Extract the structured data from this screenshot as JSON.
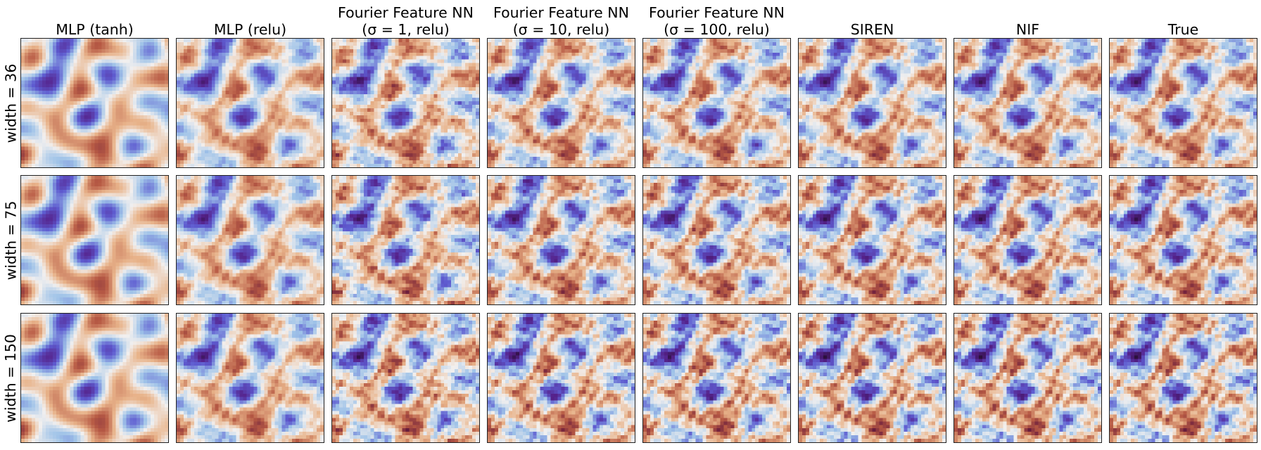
{
  "figure": {
    "columns": [
      {
        "title": [
          "MLP (tanh)"
        ],
        "kind": "smooth",
        "noise": 0
      },
      {
        "title": [
          "MLP (relu)"
        ],
        "kind": "relu",
        "noise": 0
      },
      {
        "title": [
          "Fourier Feature NN",
          "(σ = 1, relu)"
        ],
        "kind": "ff1",
        "noise": 0.9
      },
      {
        "title": [
          "Fourier Feature NN",
          "(σ = 10, relu)"
        ],
        "kind": "ff10",
        "noise": 0.6
      },
      {
        "title": [
          "Fourier Feature NN",
          "(σ = 100, relu)"
        ],
        "kind": "ff100",
        "noise": 0.6
      },
      {
        "title": [
          "SIREN"
        ],
        "kind": "fine",
        "noise": 0
      },
      {
        "title": [
          "NIF"
        ],
        "kind": "fine",
        "noise": 0
      },
      {
        "title": [
          "True"
        ],
        "kind": "fine",
        "noise": 0
      }
    ],
    "rows": [
      {
        "label": "width = 36"
      },
      {
        "label": "width = 75"
      },
      {
        "label": "width = 150"
      }
    ],
    "colormap": {
      "name": "twilight_shifted",
      "stops": [
        "#2a0f3a",
        "#55218a",
        "#5e5bd0",
        "#9ec2e8",
        "#f2f0ef",
        "#e8b38a",
        "#b75a44",
        "#6e1f3c",
        "#2a0f3a"
      ]
    }
  }
}
